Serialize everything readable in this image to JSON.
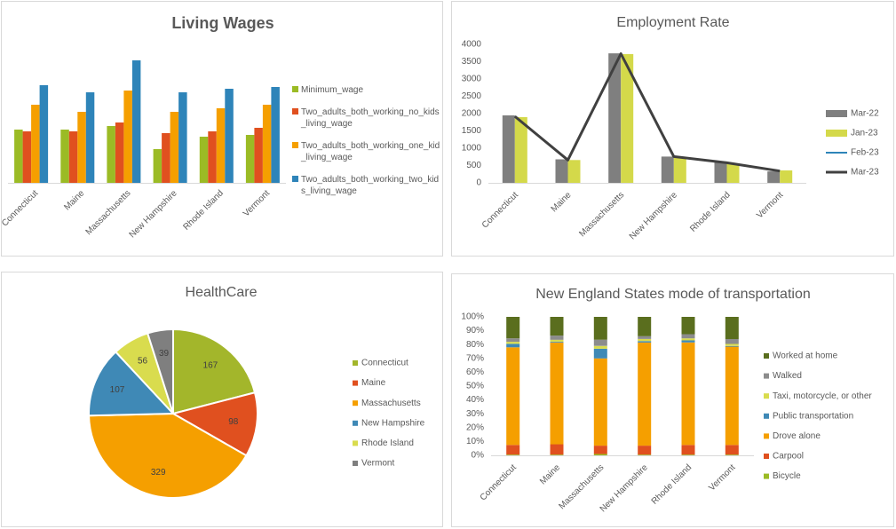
{
  "colors": {
    "text": "#595959",
    "gridline": "#d9d9d9",
    "living_wages": [
      "#9bbb25",
      "#e0501f",
      "#f59f00",
      "#2e84b9"
    ],
    "employment": [
      "#7f7f7f",
      "#d4d94a",
      "#2e84b9",
      "#404040"
    ],
    "healthcare": [
      "#a3b62b",
      "#e0501f",
      "#f59f00",
      "#3f89b6",
      "#d9dc4e",
      "#7f7f7f"
    ],
    "transport": [
      "#9bbb25",
      "#e0501f",
      "#f59f00",
      "#3f89b6",
      "#d9dc4e",
      "#8c8c8c",
      "#5a6e1e"
    ]
  },
  "chart_data": [
    {
      "id": "living_wages",
      "type": "bar",
      "title": "Living Wages",
      "categories": [
        "Connecticut",
        "Maine",
        "Massachusetts",
        "New Hampshire",
        "Rhode Island",
        "Vermont"
      ],
      "series": [
        {
          "name": "Minimum_wage",
          "values": [
            15,
            15,
            16,
            9.5,
            13,
            13.5
          ]
        },
        {
          "name": "Two_adults_both_working_no_kids_living_wage",
          "values": [
            14.5,
            14.5,
            17,
            14,
            14.5,
            15.5
          ]
        },
        {
          "name": "Two_adults_both_working_one_kid_living_wage",
          "values": [
            22,
            20,
            26,
            20,
            21,
            22
          ]
        },
        {
          "name": "Two_adults_both_working_two_kids_living_wage",
          "values": [
            27.5,
            25.5,
            34.5,
            25.5,
            26.5,
            27
          ]
        }
      ],
      "ylim": [
        0,
        40
      ],
      "legend_position": "right",
      "value_axis_visible": false
    },
    {
      "id": "employment_rate",
      "type": "bar",
      "title": "Employment Rate",
      "categories": [
        "Connecticut",
        "Maine",
        "Massachusetts",
        "New Hampshire",
        "Rhode Island",
        "Vermont"
      ],
      "series": [
        {
          "name": "Mar-22",
          "type": "bar",
          "values": [
            1950,
            680,
            3740,
            760,
            600,
            330
          ]
        },
        {
          "name": "Jan-23",
          "type": "bar",
          "values": [
            1900,
            660,
            3720,
            740,
            560,
            360
          ]
        },
        {
          "name": "Feb-23",
          "type": "line",
          "values": [
            1920,
            660,
            3730,
            760,
            580,
            340
          ]
        },
        {
          "name": "Mar-23",
          "type": "line",
          "values": [
            1920,
            660,
            3730,
            760,
            580,
            340
          ]
        }
      ],
      "yticks": [
        0,
        500,
        1000,
        1500,
        2000,
        2500,
        3000,
        3500,
        4000
      ],
      "ylim": [
        0,
        4000
      ],
      "legend_position": "right"
    },
    {
      "id": "healthcare",
      "type": "pie",
      "title": "HealthCare",
      "labels": [
        "Connecticut",
        "Maine",
        "Massachusetts",
        "New Hampshire",
        "Rhode Island",
        "Vermont"
      ],
      "values": [
        167,
        98,
        329,
        107,
        56,
        39
      ],
      "legend_position": "right"
    },
    {
      "id": "transportation",
      "type": "bar",
      "stacked": "percent",
      "title": "New England States mode of transportation",
      "categories": [
        "Connecticut",
        "Maine",
        "Massachusetts",
        "New Hampshire",
        "Rhode Island",
        "Vermont"
      ],
      "series": [
        {
          "name": "Bicycle",
          "values": [
            0.5,
            0.5,
            1,
            0.5,
            0.5,
            0.5
          ]
        },
        {
          "name": "Carpool",
          "values": [
            7,
            7.5,
            6,
            6.5,
            7,
            7
          ]
        },
        {
          "name": "Drove alone",
          "values": [
            70.5,
            73.5,
            63,
            74.5,
            74,
            71
          ]
        },
        {
          "name": "Public transportation",
          "values": [
            2.5,
            0.5,
            7,
            1,
            1.5,
            0.5
          ]
        },
        {
          "name": "Taxi, motorcycle, or other",
          "values": [
            1.5,
            1.5,
            2,
            1.5,
            1.5,
            1.5
          ]
        },
        {
          "name": "Walked",
          "values": [
            2.5,
            3,
            4.5,
            2,
            3,
            3.5
          ]
        },
        {
          "name": "Worked at home",
          "values": [
            15.5,
            13.5,
            16.5,
            14,
            12.5,
            16
          ]
        }
      ],
      "yticks": [
        "0%",
        "10%",
        "20%",
        "30%",
        "40%",
        "50%",
        "60%",
        "70%",
        "80%",
        "90%",
        "100%"
      ],
      "ylim": [
        0,
        100
      ],
      "legend_position": "right"
    }
  ]
}
